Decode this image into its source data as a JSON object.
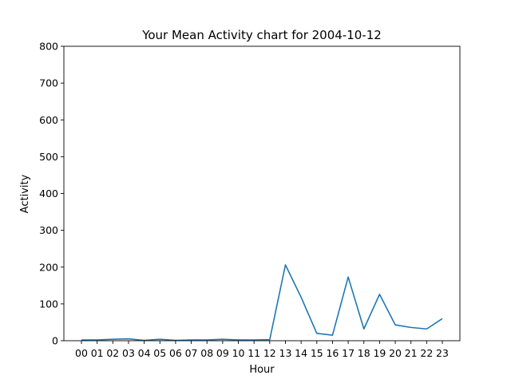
{
  "chart_data": {
    "type": "line",
    "title": "Your Mean Activity chart for 2004-10-12",
    "xlabel": "Hour",
    "ylabel": "Activity",
    "categories": [
      "00",
      "01",
      "02",
      "03",
      "04",
      "05",
      "06",
      "07",
      "08",
      "09",
      "10",
      "11",
      "12",
      "13",
      "14",
      "15",
      "16",
      "17",
      "18",
      "19",
      "20",
      "21",
      "22",
      "23"
    ],
    "series": [
      {
        "values": [
          2,
          2,
          4,
          5,
          1,
          4,
          1,
          2,
          2,
          4,
          2,
          2,
          3,
          206,
          118,
          20,
          15,
          173,
          32,
          126,
          43,
          36,
          32,
          60
        ],
        "color": "#1f77b4"
      }
    ],
    "ylim": [
      0,
      800
    ],
    "yticks": [
      0,
      100,
      200,
      300,
      400,
      500,
      600,
      700,
      800
    ],
    "grid": false,
    "legend": "none"
  }
}
